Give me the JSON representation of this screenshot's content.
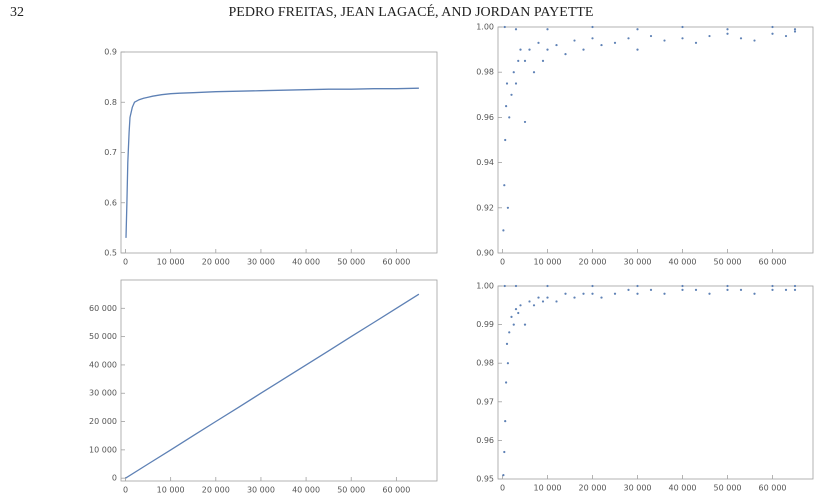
{
  "header": {
    "page_number": "32",
    "running_head": "PEDRO FREITAS, JEAN LAGACÉ, AND JORDAN PAYETTE"
  },
  "chart_data": [
    {
      "type": "line",
      "color": "#5e81b5",
      "x": [
        100,
        300,
        500,
        800,
        1000,
        1500,
        2000,
        3000,
        4000,
        5000,
        6000,
        8000,
        10000,
        12000,
        15000,
        20000,
        25000,
        30000,
        35000,
        40000,
        45000,
        50000,
        55000,
        60000,
        65000
      ],
      "y": [
        0.53,
        0.6,
        0.68,
        0.74,
        0.77,
        0.79,
        0.8,
        0.805,
        0.808,
        0.81,
        0.812,
        0.815,
        0.817,
        0.818,
        0.819,
        0.821,
        0.822,
        0.823,
        0.824,
        0.825,
        0.826,
        0.826,
        0.827,
        0.827,
        0.828
      ],
      "xlim": [
        -1000,
        69000
      ],
      "ylim": [
        0.5,
        0.9
      ],
      "xticks": [
        0,
        {
          "value": 10000,
          "label": "10 000"
        },
        {
          "value": 20000,
          "label": "20 000"
        },
        {
          "value": 30000,
          "label": "30 000"
        },
        {
          "value": 40000,
          "label": "40 000"
        },
        {
          "value": 50000,
          "label": "50 000"
        },
        {
          "value": 60000,
          "label": "60 000"
        }
      ],
      "yticks": [
        0.5,
        0.6,
        0.7,
        0.8,
        0.9
      ]
    },
    {
      "type": "scatter",
      "color": "#5e81b5",
      "x": [
        200,
        400,
        600,
        800,
        1000,
        1200,
        1500,
        2000,
        2500,
        3000,
        3500,
        4000,
        5000,
        5000,
        6000,
        7000,
        8000,
        9000,
        10000,
        12000,
        14000,
        16000,
        18000,
        20000,
        22000,
        25000,
        28000,
        30000,
        33000,
        36000,
        40000,
        43000,
        46000,
        50000,
        53000,
        56000,
        60000,
        63000,
        65000,
        500,
        3000,
        10000,
        20000,
        30000,
        40000,
        50000,
        60000,
        65000
      ],
      "y": [
        0.91,
        0.93,
        0.95,
        0.965,
        0.975,
        0.92,
        0.96,
        0.97,
        0.98,
        0.975,
        0.985,
        0.99,
        0.958,
        0.985,
        0.99,
        0.98,
        0.993,
        0.985,
        0.99,
        0.992,
        0.988,
        0.994,
        0.99,
        0.995,
        0.992,
        0.993,
        0.995,
        0.99,
        0.996,
        0.994,
        0.995,
        0.993,
        0.996,
        0.997,
        0.995,
        0.994,
        0.997,
        0.996,
        0.998,
        1.0,
        0.999,
        0.999,
        1.0,
        0.999,
        1.0,
        0.999,
        1.0,
        0.999
      ],
      "xlim": [
        -1000,
        69000
      ],
      "ylim": [
        0.9,
        1.0
      ],
      "xticks": [
        0,
        {
          "value": 10000,
          "label": "10 000"
        },
        {
          "value": 20000,
          "label": "20 000"
        },
        {
          "value": 30000,
          "label": "30 000"
        },
        {
          "value": 40000,
          "label": "40 000"
        },
        {
          "value": 50000,
          "label": "50 000"
        },
        {
          "value": 60000,
          "label": "60 000"
        }
      ],
      "yticks": [
        {
          "value": 0.9,
          "label": "0.90"
        },
        {
          "value": 0.92,
          "label": "0.92"
        },
        {
          "value": 0.94,
          "label": "0.94"
        },
        {
          "value": 0.96,
          "label": "0.96"
        },
        {
          "value": 0.98,
          "label": "0.98"
        },
        {
          "value": 1.0,
          "label": "1.00"
        }
      ]
    },
    {
      "type": "line",
      "color": "#5e81b5",
      "x": [
        0,
        5000,
        10000,
        15000,
        20000,
        25000,
        30000,
        35000,
        40000,
        45000,
        50000,
        55000,
        60000,
        65000
      ],
      "y": [
        0,
        5000,
        10000,
        15000,
        20000,
        25000,
        30000,
        35000,
        40000,
        45000,
        50000,
        55000,
        60000,
        65000
      ],
      "xlim": [
        -1000,
        69000
      ],
      "ylim": [
        -1000,
        70000
      ],
      "xticks": [
        0,
        {
          "value": 10000,
          "label": "10 000"
        },
        {
          "value": 20000,
          "label": "20 000"
        },
        {
          "value": 30000,
          "label": "30 000"
        },
        {
          "value": 40000,
          "label": "40 000"
        },
        {
          "value": 50000,
          "label": "50 000"
        },
        {
          "value": 60000,
          "label": "60 000"
        }
      ],
      "yticks": [
        0,
        {
          "value": 10000,
          "label": "10 000"
        },
        {
          "value": 20000,
          "label": "20 000"
        },
        {
          "value": 30000,
          "label": "30 000"
        },
        {
          "value": 40000,
          "label": "40 000"
        },
        {
          "value": 50000,
          "label": "50 000"
        },
        {
          "value": 60000,
          "label": "60 000"
        }
      ]
    },
    {
      "type": "scatter",
      "color": "#5e81b5",
      "x": [
        200,
        400,
        600,
        800,
        1000,
        1200,
        1500,
        2000,
        2500,
        3000,
        3500,
        4000,
        5000,
        6000,
        7000,
        8000,
        9000,
        10000,
        12000,
        14000,
        16000,
        18000,
        20000,
        22000,
        25000,
        28000,
        30000,
        33000,
        36000,
        40000,
        43000,
        46000,
        50000,
        53000,
        56000,
        60000,
        63000,
        65000,
        500,
        3000,
        10000,
        20000,
        30000,
        40000,
        50000,
        60000,
        65000
      ],
      "y": [
        0.951,
        0.957,
        0.965,
        0.975,
        0.985,
        0.98,
        0.988,
        0.992,
        0.99,
        0.994,
        0.993,
        0.995,
        0.99,
        0.996,
        0.995,
        0.997,
        0.996,
        0.997,
        0.996,
        0.998,
        0.997,
        0.998,
        0.998,
        0.997,
        0.998,
        0.999,
        0.998,
        0.999,
        0.998,
        0.999,
        0.999,
        0.998,
        0.999,
        0.999,
        0.998,
        0.999,
        0.999,
        0.999,
        1.0,
        1.0,
        1.0,
        1.0,
        1.0,
        1.0,
        1.0,
        1.0,
        1.0
      ],
      "xlim": [
        -1000,
        69000
      ],
      "ylim": [
        0.95,
        1.0
      ],
      "xticks": [
        0,
        {
          "value": 10000,
          "label": "10 000"
        },
        {
          "value": 20000,
          "label": "20 000"
        },
        {
          "value": 30000,
          "label": "30 000"
        },
        {
          "value": 40000,
          "label": "40 000"
        },
        {
          "value": 50000,
          "label": "50 000"
        },
        {
          "value": 60000,
          "label": "60 000"
        }
      ],
      "yticks": [
        {
          "value": 0.95,
          "label": "0.95"
        },
        {
          "value": 0.96,
          "label": "0.96"
        },
        {
          "value": 0.97,
          "label": "0.97"
        },
        {
          "value": 0.98,
          "label": "0.98"
        },
        {
          "value": 0.99,
          "label": "0.99"
        },
        {
          "value": 1.0,
          "label": "1.00"
        }
      ]
    }
  ]
}
